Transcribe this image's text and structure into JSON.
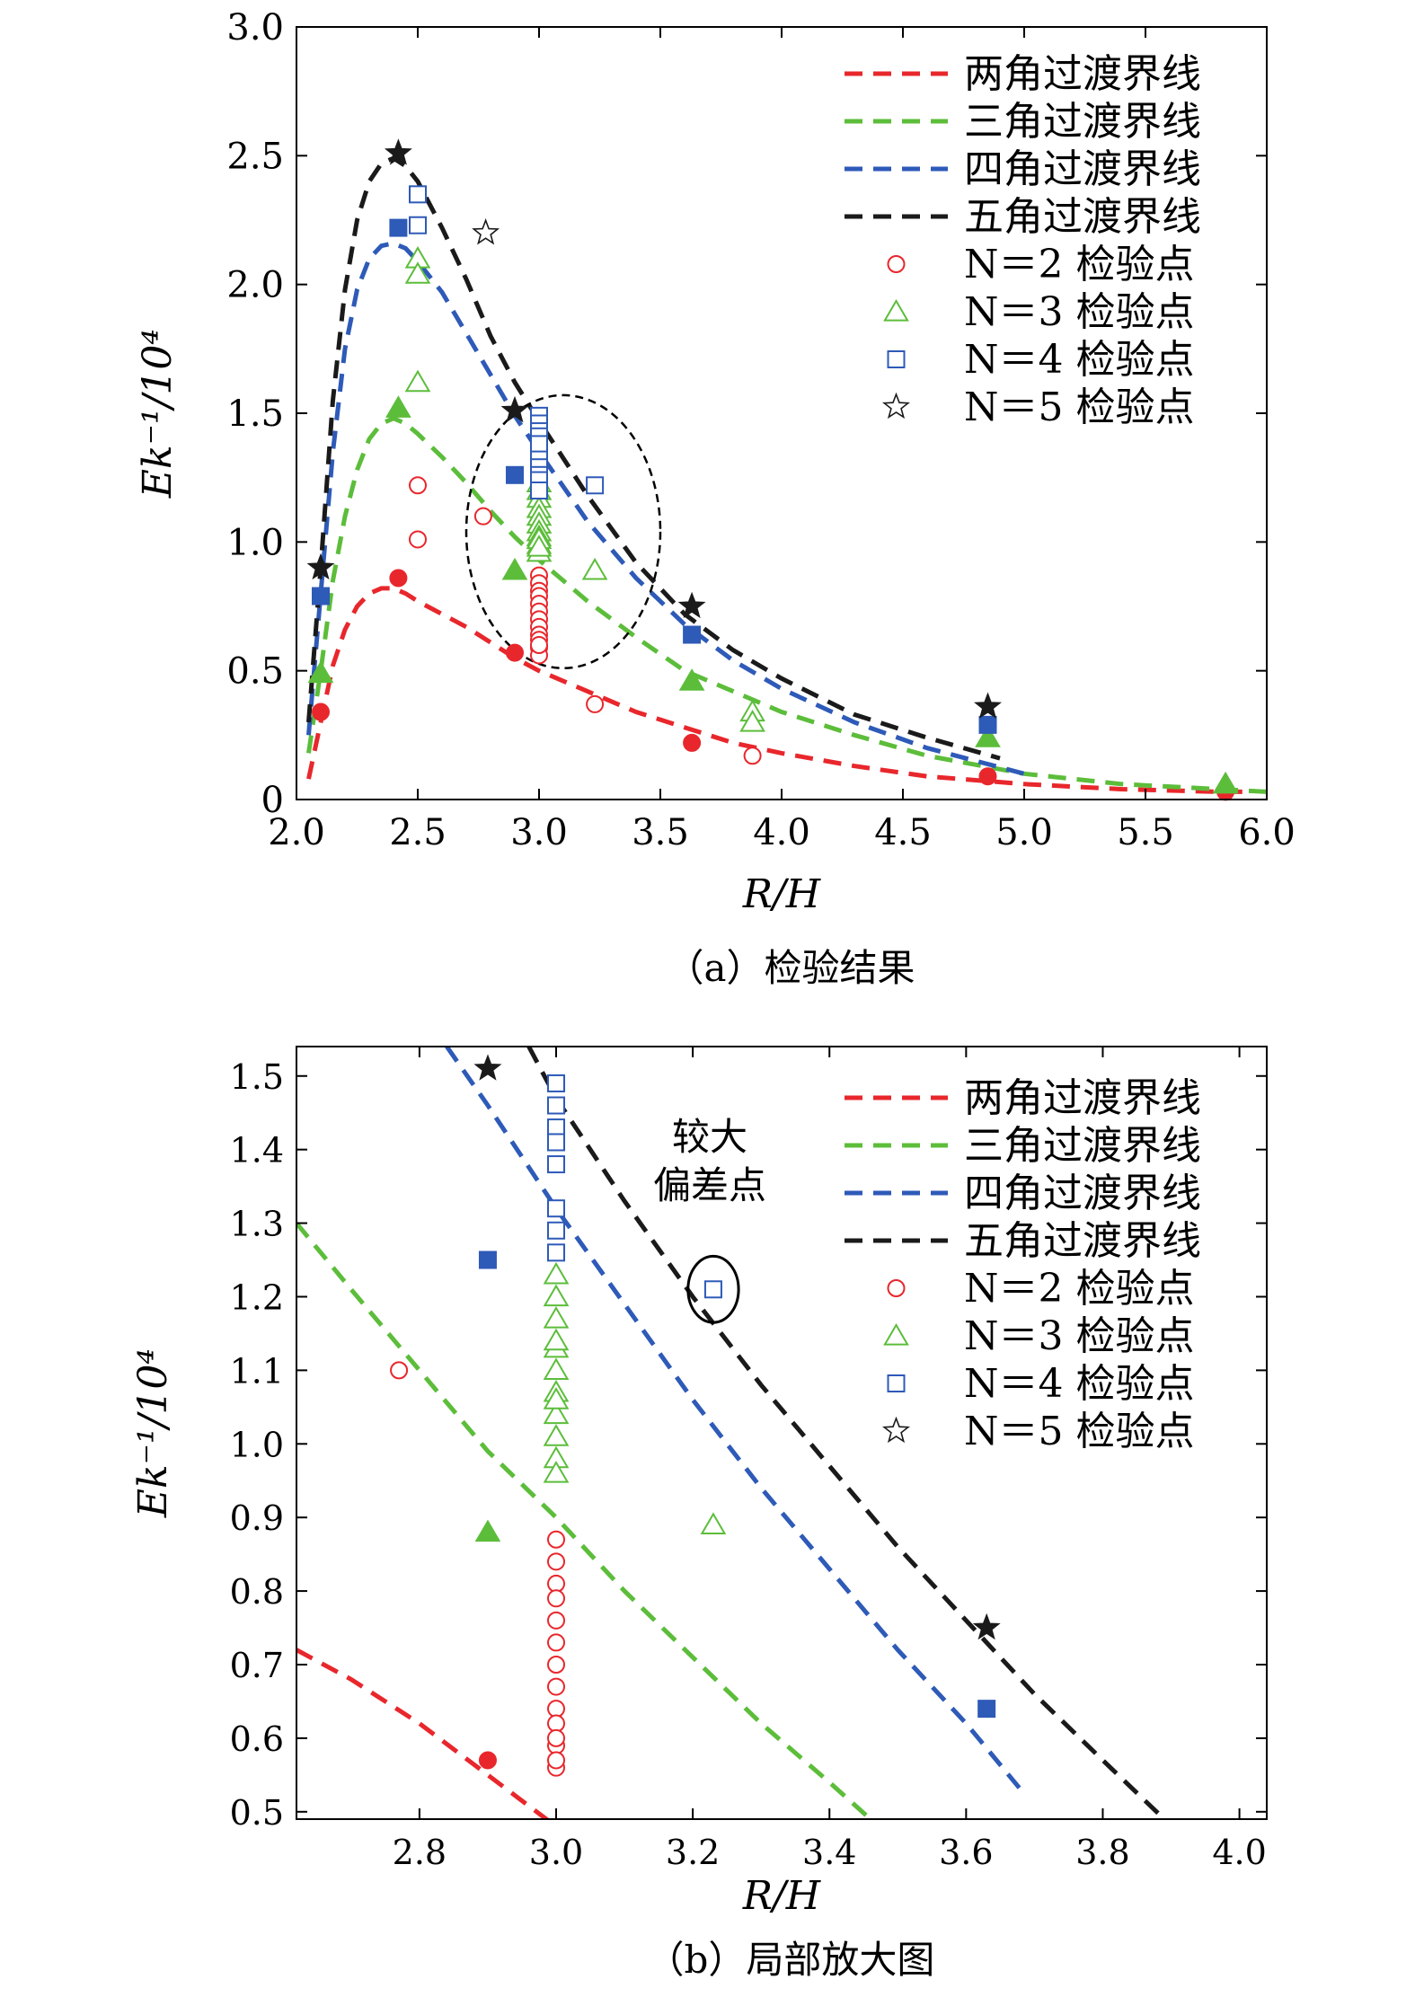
{
  "figure": {
    "panel_a_caption": "（a）检验结果",
    "panel_b_caption": "（b）局部放大图",
    "annotation_b": [
      "较大",
      "偏差点"
    ]
  },
  "chart_data": [
    {
      "type": "scatter",
      "panel": "a",
      "title": "",
      "xlabel": "R/H",
      "ylabel": "Ek⁻¹/10⁴",
      "xlim": [
        2.0,
        6.0
      ],
      "ylim": [
        0,
        3.0
      ],
      "xticks": [
        2.0,
        2.5,
        3.0,
        3.5,
        4.0,
        4.5,
        5.0,
        5.5,
        6.0
      ],
      "yticks": [
        0,
        0.5,
        1.0,
        1.5,
        2.0,
        2.5,
        3.0
      ],
      "legend_position": "top-right",
      "grid": false,
      "legend": [
        {
          "label": "两角过渡界线",
          "kind": "line",
          "color": "#e8272c"
        },
        {
          "label": "三角过渡界线",
          "kind": "line",
          "color": "#5cbd3a"
        },
        {
          "label": "四角过渡界线",
          "kind": "line",
          "color": "#2e5ab8"
        },
        {
          "label": "五角过渡界线",
          "kind": "line",
          "color": "#1a1a1a"
        },
        {
          "label": "N＝2 检验点",
          "kind": "circle",
          "color": "#e8272c"
        },
        {
          "label": "N＝3 检验点",
          "kind": "triangle",
          "color": "#5cbd3a"
        },
        {
          "label": "N＝4 检验点",
          "kind": "square",
          "color": "#2e5ab8"
        },
        {
          "label": "N＝5 检验点",
          "kind": "star",
          "color": "#1a1a1a"
        }
      ],
      "lines": [
        {
          "name": "两角过渡界线",
          "color": "#e8272c",
          "x": [
            2.05,
            2.1,
            2.15,
            2.2,
            2.25,
            2.3,
            2.35,
            2.4,
            2.45,
            2.5,
            2.6,
            2.7,
            2.8,
            2.9,
            3.0,
            3.2,
            3.4,
            3.6,
            3.8,
            4.0,
            4.3,
            4.6,
            5.0,
            5.4,
            5.8,
            5.9
          ],
          "y": [
            0.08,
            0.3,
            0.52,
            0.66,
            0.75,
            0.8,
            0.82,
            0.82,
            0.8,
            0.77,
            0.72,
            0.67,
            0.61,
            0.55,
            0.5,
            0.42,
            0.34,
            0.28,
            0.22,
            0.18,
            0.13,
            0.09,
            0.06,
            0.04,
            0.03,
            0.03
          ]
        },
        {
          "name": "三角过渡界线",
          "color": "#5cbd3a",
          "x": [
            2.05,
            2.1,
            2.15,
            2.2,
            2.25,
            2.3,
            2.35,
            2.4,
            2.45,
            2.5,
            2.6,
            2.7,
            2.8,
            2.9,
            3.0,
            3.2,
            3.4,
            3.6,
            3.8,
            4.0,
            4.3,
            4.6,
            5.0,
            5.4,
            5.8,
            6.0
          ],
          "y": [
            0.18,
            0.5,
            0.85,
            1.1,
            1.28,
            1.4,
            1.46,
            1.48,
            1.46,
            1.42,
            1.33,
            1.23,
            1.12,
            1.02,
            0.93,
            0.77,
            0.63,
            0.5,
            0.42,
            0.34,
            0.25,
            0.17,
            0.1,
            0.06,
            0.04,
            0.03
          ]
        },
        {
          "name": "四角过渡界线",
          "color": "#2e5ab8",
          "x": [
            2.05,
            2.1,
            2.15,
            2.2,
            2.25,
            2.3,
            2.35,
            2.4,
            2.45,
            2.5,
            2.6,
            2.7,
            2.8,
            2.9,
            3.0,
            3.2,
            3.4,
            3.6,
            3.8,
            4.0,
            4.3,
            4.6,
            5.0
          ],
          "y": [
            0.25,
            0.8,
            1.35,
            1.75,
            1.98,
            2.1,
            2.15,
            2.16,
            2.14,
            2.09,
            1.97,
            1.81,
            1.65,
            1.49,
            1.35,
            1.08,
            0.86,
            0.68,
            0.54,
            0.43,
            0.3,
            0.2,
            0.1
          ]
        },
        {
          "name": "五角过渡界线",
          "color": "#1a1a1a",
          "x": [
            2.05,
            2.1,
            2.15,
            2.2,
            2.25,
            2.3,
            2.35,
            2.4,
            2.45,
            2.5,
            2.6,
            2.7,
            2.8,
            2.9,
            3.0,
            3.2,
            3.4,
            3.6,
            3.8,
            4.0,
            4.3,
            4.6,
            4.9
          ],
          "y": [
            0.3,
            0.9,
            1.55,
            1.98,
            2.25,
            2.4,
            2.47,
            2.49,
            2.46,
            2.4,
            2.22,
            2.02,
            1.8,
            1.62,
            1.47,
            1.18,
            0.92,
            0.72,
            0.58,
            0.47,
            0.33,
            0.24,
            0.16
          ]
        }
      ],
      "points": [
        {
          "series": "N=2",
          "marker": "circle",
          "filled": true,
          "color": "#e8272c",
          "x": [
            2.1,
            2.42,
            2.9,
            3.63,
            4.85,
            5.83
          ],
          "y": [
            0.34,
            0.86,
            0.57,
            0.22,
            0.09,
            0.03
          ]
        },
        {
          "series": "N=2",
          "marker": "circle",
          "filled": false,
          "color": "#e8272c",
          "x": [
            2.5,
            2.5,
            2.77,
            3.0,
            3.0,
            3.0,
            3.0,
            3.0,
            3.0,
            3.0,
            3.0,
            3.0,
            3.0,
            3.0,
            3.0,
            3.0,
            3.23,
            3.88
          ],
          "y": [
            1.22,
            1.01,
            1.1,
            0.87,
            0.84,
            0.81,
            0.79,
            0.76,
            0.73,
            0.7,
            0.67,
            0.64,
            0.62,
            0.59,
            0.56,
            0.6,
            0.37,
            0.17
          ]
        },
        {
          "series": "N=3",
          "marker": "triangle",
          "filled": true,
          "color": "#5cbd3a",
          "x": [
            2.1,
            2.42,
            2.9,
            3.63,
            4.85,
            5.83
          ],
          "y": [
            0.49,
            1.52,
            0.89,
            0.46,
            0.24,
            0.06
          ]
        },
        {
          "series": "N=3",
          "marker": "triangle",
          "filled": false,
          "color": "#5cbd3a",
          "x": [
            2.5,
            2.5,
            2.5,
            3.0,
            3.0,
            3.0,
            3.0,
            3.0,
            3.0,
            3.0,
            3.0,
            3.0,
            3.0,
            3.0,
            3.0,
            3.23,
            3.88,
            3.88
          ],
          "y": [
            2.1,
            2.04,
            1.62,
            1.23,
            1.2,
            1.17,
            1.13,
            1.1,
            1.07,
            1.04,
            1.02,
            0.99,
            0.96,
            1.01,
            0.98,
            0.89,
            0.34,
            0.3
          ]
        },
        {
          "series": "N=4",
          "marker": "square",
          "filled": true,
          "color": "#2e5ab8",
          "x": [
            2.1,
            2.42,
            2.9,
            3.63,
            4.85
          ],
          "y": [
            0.79,
            2.22,
            1.26,
            0.64,
            0.29
          ]
        },
        {
          "series": "N=4",
          "marker": "square",
          "filled": false,
          "color": "#2e5ab8",
          "x": [
            2.5,
            2.5,
            3.0,
            3.0,
            3.0,
            3.0,
            3.0,
            3.0,
            3.0,
            3.0,
            3.0,
            3.0,
            3.23
          ],
          "y": [
            2.35,
            2.23,
            1.49,
            1.46,
            1.43,
            1.41,
            1.38,
            1.32,
            1.29,
            1.26,
            1.24,
            1.2,
            1.22
          ]
        },
        {
          "series": "N=5",
          "marker": "star",
          "filled": true,
          "color": "#1a1a1a",
          "x": [
            2.1,
            2.42,
            2.9,
            3.63,
            4.85
          ],
          "y": [
            0.9,
            2.51,
            1.51,
            0.75,
            0.36
          ]
        },
        {
          "series": "N=5",
          "marker": "star",
          "filled": false,
          "color": "#1a1a1a",
          "x": [
            2.78
          ],
          "y": [
            2.2
          ]
        }
      ],
      "ellipse": {
        "cx": 3.1,
        "cy": 1.04,
        "rx": 0.4,
        "ry": 0.53
      }
    },
    {
      "type": "scatter",
      "panel": "b",
      "title": "",
      "xlabel": "R/H",
      "ylabel": "Ek⁻¹/10⁴",
      "xlim": [
        2.62,
        4.04
      ],
      "ylim": [
        0.49,
        1.54
      ],
      "xticks": [
        2.8,
        3.0,
        3.2,
        3.4,
        3.6,
        3.8,
        4.0
      ],
      "yticks": [
        0.5,
        0.6,
        0.7,
        0.8,
        0.9,
        1.0,
        1.1,
        1.2,
        1.3,
        1.4,
        1.5
      ],
      "legend_position": "top-right",
      "grid": false,
      "lines": [
        {
          "name": "两角过渡界线",
          "color": "#e8272c",
          "x": [
            2.62,
            2.7,
            2.8,
            2.9,
            3.0
          ],
          "y": [
            0.72,
            0.68,
            0.62,
            0.55,
            0.48
          ]
        },
        {
          "name": "三角过渡界线",
          "color": "#5cbd3a",
          "x": [
            2.62,
            2.7,
            2.8,
            2.9,
            3.0,
            3.1,
            3.2,
            3.3,
            3.4,
            3.46
          ],
          "y": [
            1.3,
            1.21,
            1.1,
            0.99,
            0.9,
            0.8,
            0.71,
            0.62,
            0.54,
            0.49
          ]
        },
        {
          "name": "四角过渡界线",
          "color": "#2e5ab8",
          "x": [
            2.84,
            2.9,
            3.0,
            3.1,
            3.2,
            3.3,
            3.4,
            3.5,
            3.6,
            3.68
          ],
          "y": [
            1.54,
            1.46,
            1.32,
            1.19,
            1.06,
            0.94,
            0.83,
            0.72,
            0.62,
            0.53
          ]
        },
        {
          "name": "五角过渡界线",
          "color": "#1a1a1a",
          "x": [
            2.96,
            3.0,
            3.1,
            3.2,
            3.3,
            3.4,
            3.5,
            3.6,
            3.7,
            3.8,
            3.89
          ],
          "y": [
            1.54,
            1.47,
            1.33,
            1.2,
            1.08,
            0.97,
            0.86,
            0.76,
            0.66,
            0.57,
            0.49
          ]
        }
      ],
      "points": [
        {
          "series": "N=2",
          "marker": "circle",
          "filled": true,
          "color": "#e8272c",
          "x": [
            2.9
          ],
          "y": [
            0.57
          ]
        },
        {
          "series": "N=2",
          "marker": "circle",
          "filled": false,
          "color": "#e8272c",
          "x": [
            2.77,
            3.0,
            3.0,
            3.0,
            3.0,
            3.0,
            3.0,
            3.0,
            3.0,
            3.0,
            3.0,
            3.0,
            3.0,
            3.0,
            3.0
          ],
          "y": [
            1.1,
            0.87,
            0.84,
            0.81,
            0.79,
            0.76,
            0.73,
            0.7,
            0.67,
            0.64,
            0.62,
            0.59,
            0.56,
            0.6,
            0.57
          ]
        },
        {
          "series": "N=3",
          "marker": "triangle",
          "filled": true,
          "color": "#5cbd3a",
          "x": [
            2.9
          ],
          "y": [
            0.88
          ]
        },
        {
          "series": "N=3",
          "marker": "triangle",
          "filled": false,
          "color": "#5cbd3a",
          "x": [
            3.0,
            3.0,
            3.0,
            3.0,
            3.0,
            3.0,
            3.0,
            3.0,
            3.0,
            3.0,
            3.0,
            3.0,
            3.23
          ],
          "y": [
            1.23,
            1.2,
            1.17,
            1.13,
            1.1,
            1.07,
            1.04,
            1.01,
            0.98,
            0.96,
            1.14,
            1.06,
            0.89
          ]
        },
        {
          "series": "N=4",
          "marker": "square",
          "filled": true,
          "color": "#2e5ab8",
          "x": [
            2.9,
            3.63
          ],
          "y": [
            1.25,
            0.64
          ]
        },
        {
          "series": "N=4",
          "marker": "square",
          "filled": false,
          "color": "#2e5ab8",
          "x": [
            3.0,
            3.0,
            3.0,
            3.0,
            3.0,
            3.0,
            3.0,
            3.0,
            3.23
          ],
          "y": [
            1.49,
            1.46,
            1.43,
            1.41,
            1.38,
            1.32,
            1.29,
            1.26,
            1.21
          ]
        },
        {
          "series": "N=5",
          "marker": "star",
          "filled": true,
          "color": "#1a1a1a",
          "x": [
            2.9,
            3.63
          ],
          "y": [
            1.51,
            0.75
          ]
        }
      ],
      "ellipse": {
        "cx": 3.23,
        "cy": 1.21,
        "rx": 0.037,
        "ry": 0.045
      }
    }
  ]
}
